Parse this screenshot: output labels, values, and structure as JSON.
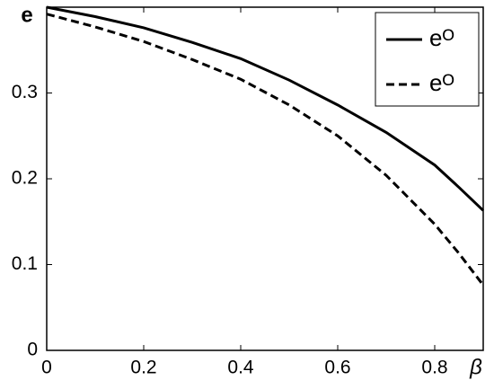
{
  "chart_data": {
    "type": "line",
    "ylabel": "e",
    "xlabel": "β",
    "x": [
      0,
      0.1,
      0.2,
      0.3,
      0.4,
      0.5,
      0.6,
      0.7,
      0.8,
      0.85,
      0.9
    ],
    "series": [
      {
        "name": "eᴼ",
        "color": "#000000",
        "dash": "solid",
        "values": [
          0.4,
          0.389,
          0.376,
          0.359,
          0.34,
          0.315,
          0.286,
          0.254,
          0.216,
          0.19,
          0.163
        ]
      },
      {
        "name": "eᴼ",
        "color": "#000000",
        "dash": "dashed",
        "values": [
          0.392,
          0.377,
          0.36,
          0.339,
          0.316,
          0.286,
          0.25,
          0.204,
          0.147,
          0.113,
          0.076
        ]
      }
    ],
    "xlim": [
      0,
      0.9
    ],
    "ylim": [
      0,
      0.4
    ],
    "xticks": [
      0,
      0.2,
      0.4,
      0.6,
      0.8
    ],
    "yticks": [
      0,
      0.1,
      0.2,
      0.3
    ],
    "legend": "top-right"
  }
}
